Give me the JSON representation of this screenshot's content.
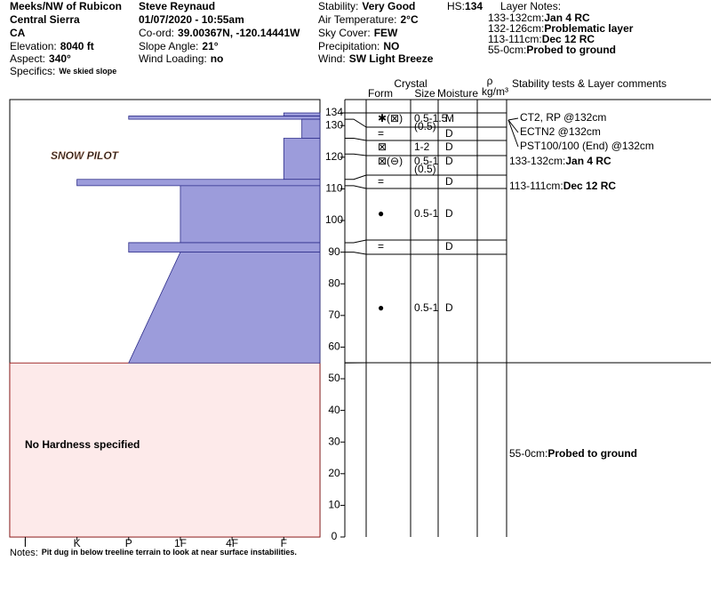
{
  "header": {
    "location": "Meeks/NW of Rubicon",
    "range": "Central Sierra",
    "state": "CA",
    "elevation": {
      "label": "Elevation:",
      "value": "8040 ft"
    },
    "aspect": {
      "label": "Aspect:",
      "value": "340°"
    },
    "specifics": {
      "label": "Specifics:",
      "value": "We skied slope"
    },
    "observer": "Steve Reynaud",
    "datetime": "01/07/2020 - 10:55am",
    "coord": {
      "label": "Co-ord:",
      "value": "39.00367N, -120.14441W"
    },
    "slope": {
      "label": "Slope Angle:",
      "value": "21°"
    },
    "wind_loading": {
      "label": "Wind Loading:",
      "value": "no"
    },
    "stability": {
      "label": "Stability:",
      "value": "Very Good"
    },
    "air_temp": {
      "label": "Air Temperature:",
      "value": "2°C"
    },
    "sky": {
      "label": "Sky Cover:",
      "value": "FEW"
    },
    "precip": {
      "label": "Precipitation:",
      "value": "NO"
    },
    "wind": {
      "label": "Wind:",
      "value": "SW Light Breeze"
    },
    "hs": {
      "label": "HS:",
      "value": "134"
    },
    "layer_notes": {
      "title": "Layer Notes:",
      "items": [
        {
          "depth": "133-132cm:",
          "text": "Jan 4 RC"
        },
        {
          "depth": "132-126cm:",
          "text": "Problematic layer"
        },
        {
          "depth": "113-111cm:",
          "text": "Dec 12 RC"
        },
        {
          "depth": "55-0cm:",
          "text": "Probed to ground"
        }
      ]
    }
  },
  "logo": "SNOW PILOT",
  "profile": {
    "depth_lim": [
      0,
      134
    ],
    "depth_ticks": [
      0,
      10,
      20,
      30,
      40,
      50,
      60,
      70,
      80,
      90,
      100,
      110,
      120,
      130,
      134
    ],
    "hardness_lim": [
      0.3,
      6.3
    ],
    "hardness_ticks": [
      {
        "value": 6,
        "label": "I"
      },
      {
        "value": 5,
        "label": "K"
      },
      {
        "value": 4,
        "label": "P"
      },
      {
        "value": 3,
        "label": "1F"
      },
      {
        "value": 2,
        "label": "4F"
      },
      {
        "value": 1,
        "label": "F"
      }
    ],
    "layers": [
      {
        "top": 134,
        "bottom": 133,
        "hardness": 1
      },
      {
        "top": 133,
        "bottom": 132,
        "hardness": 4
      },
      {
        "top": 132,
        "bottom": 126,
        "hardness": 0.65
      },
      {
        "top": 126,
        "bottom": 113,
        "hardness": 1
      },
      {
        "top": 113,
        "bottom": 111,
        "hardness": 5
      },
      {
        "top": 111,
        "bottom": 93,
        "hardness": 3
      },
      {
        "top": 93,
        "bottom": 90,
        "hardness": 4
      },
      {
        "top": 90,
        "bottom": 55,
        "hardness": [
          3,
          4
        ]
      }
    ],
    "no_hardness": {
      "top": 55,
      "bottom": 0,
      "label": "No Hardness specified"
    }
  },
  "table": {
    "headers": {
      "crystal": "Crystal",
      "form": "Form",
      "size": "Size",
      "moisture": "Moisture",
      "rho": "ρ",
      "density": "kg/m³",
      "comments": "Stability tests & Layer comments"
    },
    "rows": [
      {
        "top": 134,
        "bottom": 132,
        "form": "✱(⊠)",
        "size": "0.5-1.5",
        "size_note": "(0.5)",
        "moisture": "M"
      },
      {
        "top": 132,
        "bottom": 126,
        "form": "=",
        "moisture": "D"
      },
      {
        "top": 126,
        "bottom": 121,
        "form": "⊠",
        "size": "1-2",
        "moisture": "D"
      },
      {
        "top": 121,
        "bottom": 113,
        "form": "⊠(⊖)",
        "size": "0.5-1",
        "size_note": "(0.5)",
        "moisture": "D"
      },
      {
        "top": 113,
        "bottom": 111,
        "form": "=",
        "moisture": "D"
      },
      {
        "top": 111,
        "bottom": 93,
        "form": "●",
        "size": "0.5-1",
        "moisture": "D"
      },
      {
        "top": 93,
        "bottom": 90,
        "form": "=",
        "moisture": "D"
      },
      {
        "top": 90,
        "bottom": 55,
        "form": "●",
        "size": "0.5-1",
        "moisture": "D"
      }
    ]
  },
  "tests": [
    "CT2, RP @132cm",
    "ECTN2 @132cm",
    "PST100/100 (End) @132cm"
  ],
  "comments": [
    {
      "depth": "133-132cm:",
      "text": "Jan 4 RC"
    },
    {
      "depth": "113-111cm:",
      "text": "Dec 12 RC"
    },
    {
      "depth": "55-0cm:",
      "text": "Probed to ground"
    }
  ],
  "notes": {
    "label": "Notes:",
    "text": "Pit dug in below treeline terrain to look at near surface instabilities."
  }
}
